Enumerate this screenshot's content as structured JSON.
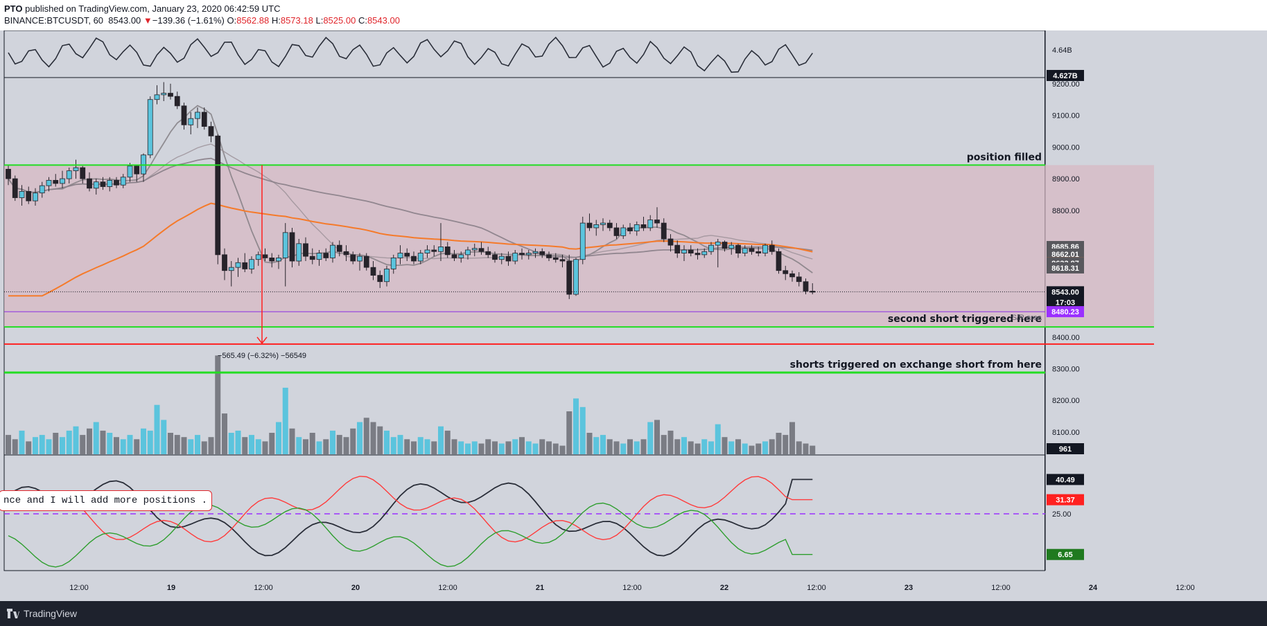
{
  "header": {
    "author": "PTO",
    "published_text": "published on TradingView.com, January 23, 2020 06:42:59 UTC",
    "symbol": "BINANCE:BTCUSDT, 60",
    "last": "8543.00",
    "change_arrow": "▼",
    "change": "−139.36 (−1.61%)",
    "o_label": "O:",
    "o": "8562.88",
    "h_label": "H:",
    "h": "8573.18",
    "l_label": "L:",
    "l": "8525.00",
    "c_label": "C:",
    "c": "8543.00"
  },
  "footer": {
    "brand": "TradingView",
    "logo_icon": "tradingview-logo-icon"
  },
  "note_text": "nce and I will add more positions .",
  "colors": {
    "background": "#d1d4dc",
    "candle_up": "#5bc4dd",
    "candle_down": "#26232a",
    "ema": "#f57a2a",
    "range_zone": "#d7b9c4",
    "green_level": "#22dd22",
    "red_level": "#ff2020",
    "sr_line": "#8a2be2"
  },
  "chart_data": {
    "type": "candlestick",
    "symbol": "BINANCE:BTCUSDT",
    "timeframe": "60",
    "price_range": [
      8030,
      9215
    ],
    "x_tick_labels": [
      "12:00",
      "19",
      "12:00",
      "20",
      "12:00",
      "21",
      "12:00",
      "22",
      "12:00",
      "23",
      "12:00",
      "24",
      "12:00"
    ],
    "y_tick_labels": [
      "9200.00",
      "9100.00",
      "9000.00",
      "8900.00",
      "8800.00",
      "8400.00",
      "8300.00",
      "8200.00",
      "8100.00"
    ],
    "price_badges": [
      {
        "value": "8685.86",
        "price": 8685.86,
        "bg": "#58585d",
        "fg": "#ffffff"
      },
      {
        "value": "8662.01",
        "price": 8662.01,
        "bg": "#58585d",
        "fg": "#ffffff"
      },
      {
        "value": "8633.98",
        "price": 8633.98,
        "bg": "#f57a2a",
        "fg": "#ffffff"
      },
      {
        "value": "8633.87",
        "price": 8633.87,
        "bg": "#58585d",
        "fg": "#ffffff"
      },
      {
        "value": "8618.31",
        "price": 8618.31,
        "bg": "#58585d",
        "fg": "#ffffff"
      },
      {
        "value": "8543.00",
        "price": 8543.0,
        "bg": "#131722",
        "fg": "#ffffff"
      },
      {
        "value": "17:03",
        "price": 8510,
        "bg": "#131722",
        "fg": "#ffffff"
      },
      {
        "value": "8480.23",
        "price": 8480.23,
        "bg": "#9b30ff",
        "fg": "#ffffff"
      }
    ],
    "levels": [
      {
        "name": "position-filled",
        "price": 8943,
        "color": "#22dd22",
        "label": "position  filled"
      },
      {
        "name": "second-short",
        "price": 8432,
        "color": "#22dd22",
        "label": "second short triggered here"
      },
      {
        "name": "red-target",
        "price": 8378,
        "color": "#ff2020",
        "label": ""
      },
      {
        "name": "shorts-triggered",
        "price": 8288,
        "color": "#22dd22",
        "label": "shorts triggered  on exchange  short from here"
      }
    ],
    "sr_area": {
      "price": 8480,
      "label": "S/R area"
    },
    "range_zone": {
      "top": 8943,
      "bottom": 8432
    },
    "measure": {
      "label": "−565.49 (−6.32%) −56549",
      "from": 8943,
      "to": 8378
    },
    "last_price": 8543.0,
    "top_indicator": {
      "tick_labels": [
        "4.64B",
        "4.627B"
      ]
    },
    "volume": {
      "last_label": "961"
    },
    "oscillator": {
      "tick_labels": [
        "40.49",
        "31.37",
        "25.00",
        "6.65"
      ],
      "series_values": [
        40.49,
        31.37,
        6.65
      ],
      "guide": 25.0,
      "range": [
        0,
        50
      ]
    },
    "candles": [
      [
        8930,
        8945,
        8880,
        8900
      ],
      [
        8900,
        8910,
        8830,
        8840
      ],
      [
        8840,
        8880,
        8815,
        8860
      ],
      [
        8860,
        8875,
        8820,
        8830
      ],
      [
        8830,
        8870,
        8815,
        8855
      ],
      [
        8855,
        8890,
        8840,
        8878
      ],
      [
        8878,
        8905,
        8860,
        8895
      ],
      [
        8895,
        8915,
        8875,
        8885
      ],
      [
        8885,
        8925,
        8870,
        8900
      ],
      [
        8900,
        8935,
        8885,
        8925
      ],
      [
        8925,
        8960,
        8900,
        8935
      ],
      [
        8935,
        8940,
        8885,
        8900
      ],
      [
        8900,
        8920,
        8860,
        8870
      ],
      [
        8870,
        8900,
        8850,
        8890
      ],
      [
        8890,
        8905,
        8865,
        8875
      ],
      [
        8875,
        8905,
        8860,
        8895
      ],
      [
        8895,
        8905,
        8870,
        8880
      ],
      [
        8880,
        8915,
        8870,
        8905
      ],
      [
        8905,
        8950,
        8890,
        8940
      ],
      [
        8940,
        8945,
        8890,
        8915
      ],
      [
        8915,
        8980,
        8890,
        8975
      ],
      [
        8975,
        9160,
        8965,
        9150
      ],
      [
        9150,
        9195,
        9135,
        9165
      ],
      [
        9165,
        9205,
        9145,
        9170
      ],
      [
        9170,
        9200,
        9150,
        9160
      ],
      [
        9160,
        9175,
        9120,
        9130
      ],
      [
        9130,
        9140,
        9055,
        9070
      ],
      [
        9070,
        9110,
        9040,
        9090
      ],
      [
        9090,
        9125,
        9060,
        9110
      ],
      [
        9110,
        9125,
        9055,
        9065
      ],
      [
        9065,
        9080,
        9015,
        9035
      ],
      [
        9035,
        9040,
        8630,
        8660
      ],
      [
        8660,
        8680,
        8580,
        8610
      ],
      [
        8610,
        8640,
        8560,
        8620
      ],
      [
        8620,
        8650,
        8590,
        8635
      ],
      [
        8635,
        8665,
        8605,
        8615
      ],
      [
        8615,
        8655,
        8600,
        8645
      ],
      [
        8645,
        8670,
        8625,
        8660
      ],
      [
        8660,
        8680,
        8640,
        8650
      ],
      [
        8650,
        8665,
        8620,
        8640
      ],
      [
        8640,
        8660,
        8615,
        8650
      ],
      [
        8650,
        8760,
        8560,
        8730
      ],
      [
        8730,
        8745,
        8620,
        8640
      ],
      [
        8640,
        8710,
        8625,
        8695
      ],
      [
        8695,
        8715,
        8640,
        8655
      ],
      [
        8655,
        8680,
        8630,
        8645
      ],
      [
        8645,
        8675,
        8625,
        8665
      ],
      [
        8665,
        8680,
        8640,
        8650
      ],
      [
        8650,
        8700,
        8635,
        8690
      ],
      [
        8690,
        8705,
        8655,
        8670
      ],
      [
        8670,
        8690,
        8640,
        8660
      ],
      [
        8660,
        8670,
        8630,
        8640
      ],
      [
        8640,
        8665,
        8610,
        8655
      ],
      [
        8655,
        8665,
        8610,
        8620
      ],
      [
        8620,
        8640,
        8580,
        8595
      ],
      [
        8595,
        8610,
        8555,
        8575
      ],
      [
        8575,
        8625,
        8560,
        8615
      ],
      [
        8615,
        8660,
        8600,
        8650
      ],
      [
        8650,
        8690,
        8630,
        8665
      ],
      [
        8665,
        8680,
        8640,
        8655
      ],
      [
        8655,
        8670,
        8630,
        8640
      ],
      [
        8640,
        8675,
        8630,
        8665
      ],
      [
        8665,
        8690,
        8650,
        8675
      ],
      [
        8675,
        8690,
        8655,
        8670
      ],
      [
        8670,
        8760,
        8640,
        8685
      ],
      [
        8685,
        8700,
        8650,
        8660
      ],
      [
        8660,
        8675,
        8640,
        8650
      ],
      [
        8650,
        8670,
        8635,
        8660
      ],
      [
        8660,
        8685,
        8645,
        8675
      ],
      [
        8675,
        8695,
        8655,
        8680
      ],
      [
        8680,
        8700,
        8660,
        8670
      ],
      [
        8670,
        8685,
        8650,
        8660
      ],
      [
        8660,
        8670,
        8635,
        8645
      ],
      [
        8645,
        8665,
        8630,
        8655
      ],
      [
        8655,
        8670,
        8625,
        8640
      ],
      [
        8640,
        8675,
        8630,
        8665
      ],
      [
        8665,
        8680,
        8645,
        8660
      ],
      [
        8660,
        8675,
        8645,
        8665
      ],
      [
        8665,
        8680,
        8650,
        8670
      ],
      [
        8670,
        8680,
        8650,
        8660
      ],
      [
        8660,
        8670,
        8640,
        8650
      ],
      [
        8650,
        8665,
        8635,
        8645
      ],
      [
        8645,
        8660,
        8620,
        8640
      ],
      [
        8640,
        8660,
        8520,
        8535
      ],
      [
        8535,
        8650,
        8530,
        8645
      ],
      [
        8645,
        8780,
        8630,
        8760
      ],
      [
        8760,
        8790,
        8735,
        8745
      ],
      [
        8745,
        8770,
        8720,
        8755
      ],
      [
        8755,
        8775,
        8735,
        8760
      ],
      [
        8760,
        8770,
        8735,
        8745
      ],
      [
        8745,
        8760,
        8710,
        8720
      ],
      [
        8720,
        8755,
        8710,
        8745
      ],
      [
        8745,
        8760,
        8725,
        8735
      ],
      [
        8735,
        8765,
        8720,
        8755
      ],
      [
        8755,
        8780,
        8735,
        8745
      ],
      [
        8745,
        8785,
        8735,
        8770
      ],
      [
        8770,
        8810,
        8745,
        8760
      ],
      [
        8760,
        8775,
        8700,
        8710
      ],
      [
        8710,
        8725,
        8670,
        8690
      ],
      [
        8690,
        8705,
        8650,
        8665
      ],
      [
        8665,
        8690,
        8640,
        8675
      ],
      [
        8675,
        8690,
        8655,
        8665
      ],
      [
        8665,
        8680,
        8645,
        8660
      ],
      [
        8660,
        8680,
        8650,
        8670
      ],
      [
        8670,
        8700,
        8660,
        8690
      ],
      [
        8690,
        8710,
        8620,
        8700
      ],
      [
        8700,
        8705,
        8670,
        8680
      ],
      [
        8680,
        8700,
        8660,
        8690
      ],
      [
        8690,
        8695,
        8650,
        8665
      ],
      [
        8665,
        8690,
        8655,
        8680
      ],
      [
        8680,
        8690,
        8660,
        8670
      ],
      [
        8670,
        8685,
        8655,
        8665
      ],
      [
        8665,
        8695,
        8655,
        8690
      ],
      [
        8690,
        8705,
        8660,
        8670
      ],
      [
        8670,
        8680,
        8600,
        8610
      ],
      [
        8610,
        8625,
        8580,
        8600
      ],
      [
        8600,
        8610,
        8575,
        8590
      ],
      [
        8590,
        8605,
        8560,
        8575
      ],
      [
        8575,
        8585,
        8535,
        8545
      ],
      [
        8545,
        8570,
        8535,
        8543
      ]
    ],
    "volume_bars": [
      18,
      14,
      22,
      12,
      16,
      18,
      14,
      20,
      16,
      22,
      26,
      18,
      24,
      30,
      22,
      20,
      16,
      14,
      18,
      14,
      24,
      22,
      46,
      32,
      20,
      18,
      16,
      14,
      18,
      12,
      16,
      92,
      38,
      20,
      22,
      16,
      18,
      14,
      12,
      20,
      30,
      62,
      24,
      16,
      14,
      20,
      12,
      14,
      22,
      18,
      16,
      24,
      30,
      34,
      30,
      26,
      22,
      16,
      18,
      14,
      12,
      16,
      14,
      12,
      26,
      22,
      14,
      12,
      10,
      12,
      10,
      14,
      12,
      10,
      12,
      14,
      16,
      12,
      10,
      14,
      12,
      10,
      8,
      40,
      52,
      44,
      20,
      16,
      18,
      14,
      12,
      10,
      14,
      12,
      14,
      30,
      32,
      18,
      22,
      14,
      16,
      12,
      10,
      14,
      12,
      28,
      16,
      12,
      14,
      10,
      8,
      10,
      12,
      14,
      20,
      18,
      30,
      12,
      10,
      8
    ]
  }
}
